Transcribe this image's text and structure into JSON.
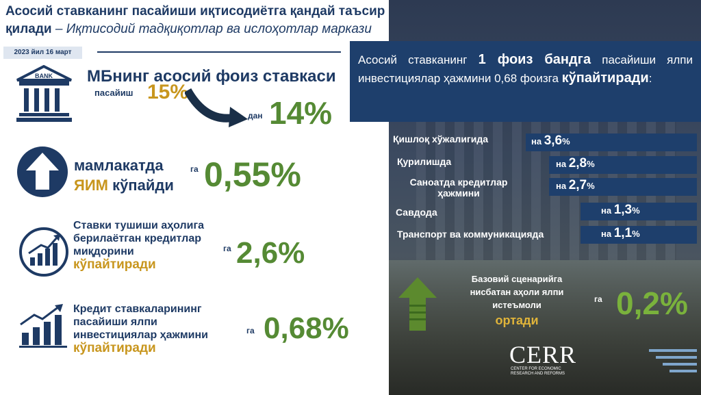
{
  "header": {
    "title_main": "Асосий ставканинг пасайиши иқтисодиётга қандай таъсир қилади",
    "title_dash": " – ",
    "title_source": "Иқтисодий тадқиқотлар ва ислоҳотлар маркази",
    "date": "2023 йил 16 март"
  },
  "rate_block": {
    "bank_label": "BANK",
    "heading": "МБнинг асосий фоиз ставкаси",
    "label_decrease": "пасайиш",
    "from_value": "15%",
    "label_from": "дан",
    "to_value": "14%"
  },
  "gdp_block": {
    "line1": "мамлакатда",
    "word_yim": "ЯИМ",
    "word_up": " кўпайди",
    "label_ga": "га",
    "value": "0,55%"
  },
  "credit_block": {
    "text": "Ставки тушиши аҳолига берилаётган кредитлар миқдорини",
    "highlight": "кўпайтиради",
    "label_ga": "га",
    "value": "2,6%"
  },
  "invest_block": {
    "text": "Кредит ставкаларининг пасайиши ялпи инвестициялар ҳажмини",
    "highlight": "кўпайтиради",
    "label_ga": "га",
    "value": "0,68%"
  },
  "infobox": {
    "t1": "Асосий ставканинг ",
    "b1": "1 фоиз бандга",
    "t2": " пасайиши ялпи инвестициялар ҳажмини 0,68 фоизга ",
    "b2": "кўпайтиради",
    "t3": ":"
  },
  "sectors": [
    {
      "label": "Қишлоқ хўжалигида",
      "prefix": "на ",
      "value": "3,6",
      "suffix": "%"
    },
    {
      "label": "Қурилишда",
      "prefix": "на ",
      "value": "2,8",
      "suffix": "%"
    },
    {
      "label": "Саноатда кредитлар ҳажмини",
      "prefix": "на ",
      "value": "2,7",
      "suffix": "%"
    },
    {
      "label": "Савдода",
      "prefix": "на ",
      "value": "1,3",
      "suffix": "%"
    },
    {
      "label": "Транспорт ва коммуникацияда",
      "prefix": "на ",
      "value": "1,1",
      "suffix": "%"
    }
  ],
  "consumption_block": {
    "text": "Базовий сценарийга нисбатан аҳоли ялпи истеъмоли",
    "highlight": "ортади",
    "label_ga": "га",
    "value": "0,2%"
  },
  "logo": {
    "name": "CERR",
    "line1": "CENTER FOR ECONOMIC",
    "line2": "RESEARCH AND REFORMS"
  },
  "colors": {
    "navy": "#1e3a64",
    "gold": "#c8961e",
    "green": "#558a34"
  }
}
